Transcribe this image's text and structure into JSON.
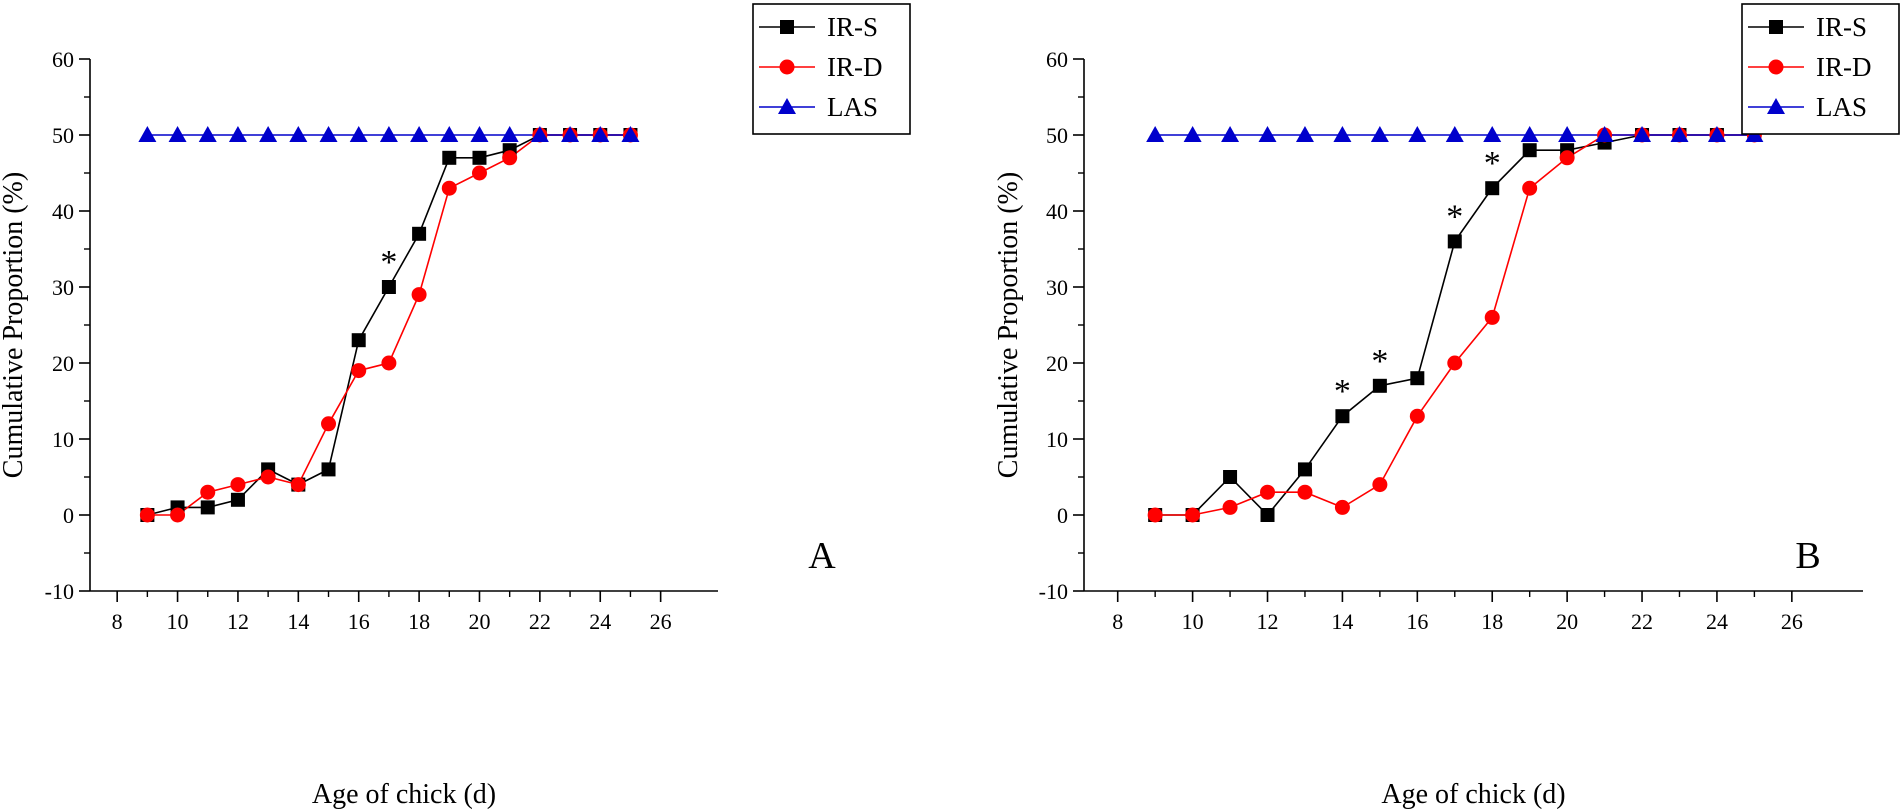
{
  "chart_data": [
    {
      "type": "line",
      "panel_label": "A",
      "xlabel": "Age of chick (d)",
      "ylabel": "Cumulative Proportion (%)",
      "xlim": [
        7.1,
        27.9
      ],
      "ylim": [
        -10,
        60
      ],
      "xticks": [
        8,
        10,
        12,
        14,
        16,
        18,
        20,
        22,
        24,
        26
      ],
      "yticks": [
        -10,
        0,
        10,
        20,
        30,
        40,
        50,
        60
      ],
      "xtick_labels": [
        "8",
        "10",
        "12",
        "14",
        "16",
        "18",
        "20",
        "22",
        "24",
        "26"
      ],
      "ytick_labels": [
        "-10",
        "0",
        "10",
        "20",
        "30",
        "40",
        "50",
        "60"
      ],
      "legend_position": "top-right",
      "x": [
        9,
        10,
        11,
        12,
        13,
        14,
        15,
        16,
        17,
        18,
        19,
        20,
        21,
        22,
        23,
        24,
        25
      ],
      "series": [
        {
          "name": "IR-S",
          "color": "#000000",
          "marker": "square",
          "values": [
            0,
            1,
            1,
            2,
            6,
            4,
            6,
            23,
            30,
            37,
            47,
            47,
            48,
            50,
            50,
            50,
            50
          ]
        },
        {
          "name": "IR-D",
          "color": "#ff0000",
          "marker": "circle",
          "values": [
            0,
            0,
            3,
            4,
            5,
            4,
            12,
            19,
            20,
            29,
            43,
            45,
            47,
            50,
            50,
            50,
            50
          ]
        },
        {
          "name": "LAS",
          "color": "#0000cc",
          "marker": "triangle",
          "values": [
            50,
            50,
            50,
            50,
            50,
            50,
            50,
            50,
            50,
            50,
            50,
            50,
            50,
            50,
            50,
            50,
            50
          ]
        }
      ],
      "annotations": [
        {
          "text": "*",
          "x": 17,
          "y": 30
        }
      ]
    },
    {
      "type": "line",
      "panel_label": "B",
      "xlabel": "Age of chick (d)",
      "ylabel": "Cumulative Proportion (%)",
      "xlim": [
        7.1,
        27.9
      ],
      "ylim": [
        -10,
        60
      ],
      "xticks": [
        8,
        10,
        12,
        14,
        16,
        18,
        20,
        22,
        24,
        26
      ],
      "yticks": [
        -10,
        0,
        10,
        20,
        30,
        40,
        50,
        60
      ],
      "xtick_labels": [
        "8",
        "10",
        "12",
        "14",
        "16",
        "18",
        "20",
        "22",
        "24",
        "26"
      ],
      "ytick_labels": [
        "-10",
        "0",
        "10",
        "20",
        "30",
        "40",
        "50",
        "60"
      ],
      "legend_position": "top-right",
      "x": [
        9,
        10,
        11,
        12,
        13,
        14,
        15,
        16,
        17,
        18,
        19,
        20,
        21,
        22,
        23,
        24,
        25
      ],
      "series": [
        {
          "name": "IR-S",
          "color": "#000000",
          "marker": "square",
          "values": [
            0,
            0,
            5,
            0,
            6,
            13,
            17,
            18,
            36,
            43,
            48,
            48,
            49,
            50,
            50,
            50,
            50
          ]
        },
        {
          "name": "IR-D",
          "color": "#ff0000",
          "marker": "circle",
          "values": [
            0,
            0,
            1,
            3,
            3,
            1,
            4,
            13,
            20,
            26,
            43,
            47,
            50,
            50,
            50,
            50,
            50
          ]
        },
        {
          "name": "LAS",
          "color": "#0000cc",
          "marker": "triangle",
          "values": [
            50,
            50,
            50,
            50,
            50,
            50,
            50,
            50,
            50,
            50,
            50,
            50,
            50,
            50,
            50,
            50,
            50
          ]
        }
      ],
      "annotations": [
        {
          "text": "*",
          "x": 14,
          "y": 13
        },
        {
          "text": "*",
          "x": 15,
          "y": 17
        },
        {
          "text": "*",
          "x": 17,
          "y": 36
        },
        {
          "text": "*",
          "x": 18,
          "y": 43
        }
      ]
    }
  ]
}
